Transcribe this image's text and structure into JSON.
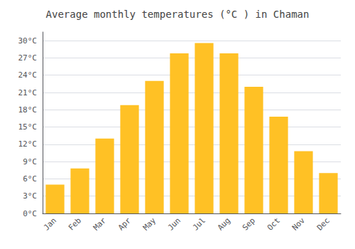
{
  "chart_data": {
    "type": "bar",
    "title": "Average monthly temperatures (°C ) in Chaman",
    "categories": [
      "Jan",
      "Feb",
      "Mar",
      "Apr",
      "May",
      "Jun",
      "Jul",
      "Aug",
      "Sep",
      "Oct",
      "Nov",
      "Dec"
    ],
    "values": [
      5.0,
      7.8,
      13.0,
      18.8,
      23.0,
      27.8,
      29.6,
      27.8,
      22.0,
      16.8,
      10.8,
      7.0
    ],
    "color": "#FFC125",
    "ylim": [
      0,
      31.5
    ],
    "yticks": [
      {
        "value": 0,
        "label": "0°C"
      },
      {
        "value": 3,
        "label": "3°C"
      },
      {
        "value": 6,
        "label": "6°C"
      },
      {
        "value": 9,
        "label": "9°C"
      },
      {
        "value": 12,
        "label": "12°C"
      },
      {
        "value": 15,
        "label": "15°C"
      },
      {
        "value": 18,
        "label": "18°C"
      },
      {
        "value": 21,
        "label": "21°C"
      },
      {
        "value": 24,
        "label": "24°C"
      },
      {
        "value": 27,
        "label": "27°C"
      },
      {
        "value": 30,
        "label": "30°C"
      }
    ],
    "grid": true
  }
}
